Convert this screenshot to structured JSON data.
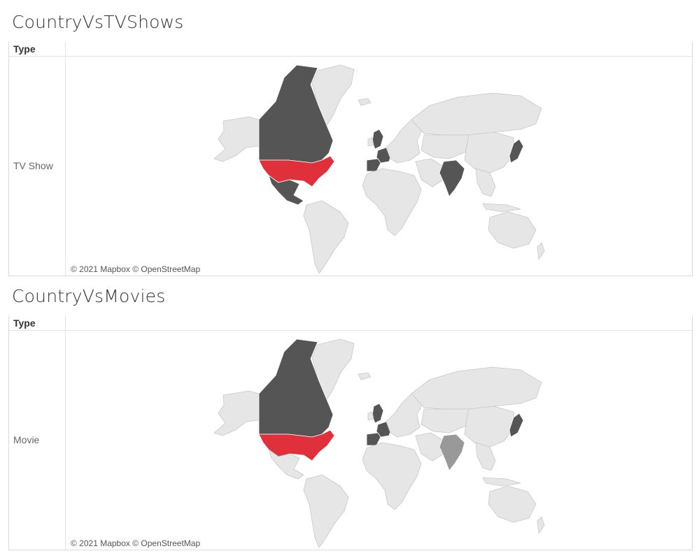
{
  "sheets": [
    {
      "title": "CountryVsTVShows",
      "column_header": "Type",
      "row_label": "TV Show",
      "attribution": "© 2021 Mapbox © OpenStreetMap",
      "highlight": {
        "United States": "#e0303b",
        "Canada": "#555555",
        "Mexico": "#555555",
        "United Kingdom": "#555555",
        "France": "#555555",
        "Spain": "#555555",
        "India": "#555555",
        "Japan": "#555555"
      }
    },
    {
      "title": "CountryVsMovies",
      "column_header": "Type",
      "row_label": "Movie",
      "attribution": "© 2021 Mapbox © OpenStreetMap",
      "highlight": {
        "United States": "#e0303b",
        "Canada": "#555555",
        "United Kingdom": "#555555",
        "France": "#555555",
        "Spain": "#555555",
        "India": "#999999",
        "Japan": "#555555"
      }
    }
  ],
  "colors": {
    "land": "#e6e6e6",
    "land_stroke": "#c8c8c8",
    "top": "#e0303b",
    "high": "#555555",
    "mid": "#999999"
  }
}
